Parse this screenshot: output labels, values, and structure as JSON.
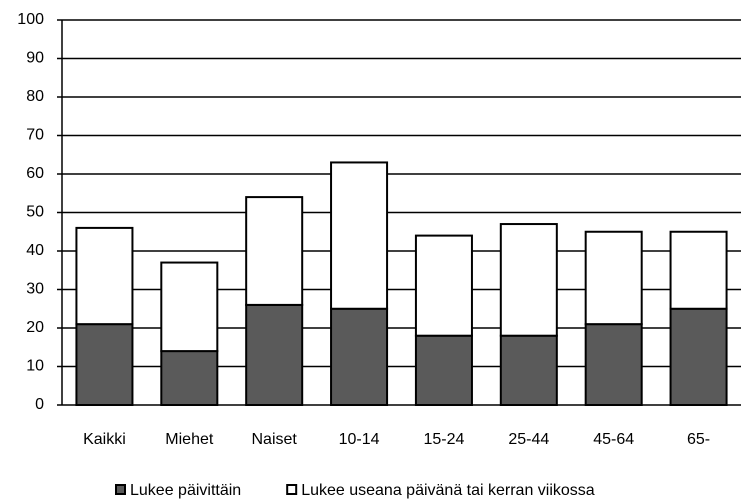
{
  "chart_data": {
    "type": "stacked_bar",
    "categories": [
      "Kaikki",
      "Miehet",
      "Naiset",
      "10-14",
      "15-24",
      "25-44",
      "45-64",
      "65-"
    ],
    "series": [
      {
        "name": "Lukee päivittäin",
        "color": "#5a5a5a",
        "values": [
          21,
          14,
          26,
          25,
          18,
          18,
          21,
          25
        ]
      },
      {
        "name": "Lukee useana päivänä tai kerran viikossa",
        "color": "#ffffff",
        "values": [
          25,
          23,
          28,
          38,
          26,
          29,
          24,
          20
        ]
      }
    ],
    "ylim": [
      0,
      100
    ],
    "yticks": [
      0,
      10,
      20,
      30,
      40,
      50,
      60,
      70,
      80,
      90,
      100
    ],
    "grid": true
  }
}
